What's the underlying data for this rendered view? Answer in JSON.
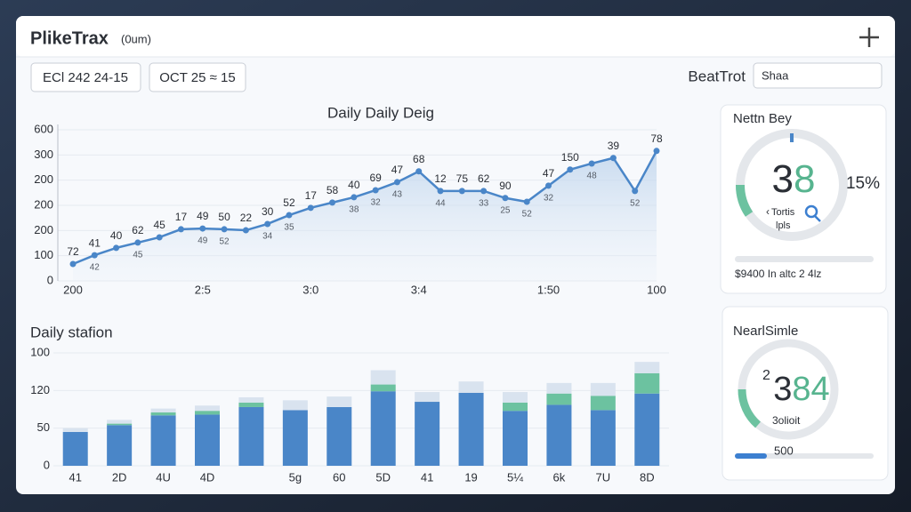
{
  "header": {
    "title": "PlikeTrax",
    "subtitle": "(0um)"
  },
  "toolbar": {
    "date_from": "ECl 242 24-15",
    "date_to": "OCT 25 ≈ 15",
    "label": "BeatTrot",
    "search": "Shaa"
  },
  "line_chart": {
    "type": "line",
    "title": "Daily Daily Deig",
    "color": "#4a86c8",
    "ylim": [
      0,
      600
    ],
    "yticks": [
      0,
      100,
      200,
      {
        "value": 300,
        "label": "200"
      },
      {
        "value": 400,
        "label": "200"
      },
      {
        "value": 500,
        "label": "300"
      },
      600
    ],
    "categories": [
      "200",
      null,
      null,
      null,
      null,
      null,
      "2:5",
      null,
      null,
      null,
      null,
      "3:0",
      null,
      null,
      null,
      null,
      "3:4",
      null,
      null,
      null,
      null,
      null,
      "1:50",
      null,
      null,
      null,
      null,
      "100"
    ],
    "values": [
      67,
      102,
      131,
      152,
      173,
      205,
      208,
      205,
      201,
      226,
      261,
      290,
      311,
      332,
      360,
      392,
      435,
      357,
      357,
      357,
      329,
      314,
      378,
      442,
      466,
      488,
      357,
      516
    ],
    "point_labels": [
      "72",
      "41",
      "40",
      "62",
      "45",
      "17",
      "49",
      "50",
      "22",
      "30",
      "52",
      "17",
      "58",
      "40",
      "69",
      "47",
      "68",
      "12",
      "75",
      "62",
      "90",
      null,
      "47",
      "150",
      null,
      "39",
      null,
      "78"
    ],
    "point_sublabels": [
      null,
      "42",
      null,
      "45",
      null,
      null,
      "49",
      "52",
      null,
      "34",
      "35",
      null,
      null,
      "38",
      "32",
      "43",
      null,
      "44",
      null,
      "33",
      "25",
      "52",
      "32",
      null,
      "48",
      null,
      "52",
      null
    ]
  },
  "bar_chart": {
    "type": "bar",
    "title": "Daily stafion",
    "ylim": [
      0,
      150
    ],
    "yticks": [
      0,
      50,
      {
        "value": 100,
        "label": "120"
      },
      {
        "value": 150,
        "label": "100"
      }
    ],
    "categories": [
      "41",
      "2D",
      "4U",
      "4D",
      null,
      "5g",
      "60",
      "5D",
      "41",
      "19",
      "5¼",
      "6k",
      "7U",
      "8D"
    ],
    "series": [
      {
        "color": "#4a86c8",
        "values": [
          45,
          54,
          67,
          68,
          78,
          74,
          78,
          99,
          85,
          97,
          73,
          81,
          74,
          96
        ]
      },
      {
        "color": "#6cc2a0",
        "values": [
          0,
          2,
          4,
          5,
          6,
          0,
          0,
          9,
          0,
          0,
          11,
          15,
          19,
          27
        ]
      },
      {
        "color": "#d9e3ef",
        "values": [
          5,
          5,
          5,
          7,
          7,
          13,
          14,
          19,
          13,
          15,
          14,
          14,
          17,
          15
        ]
      }
    ]
  },
  "cards": [
    {
      "title": "Nettn Bey",
      "value_main": "3",
      "value_accent": "8",
      "side": "15%",
      "line1": "Tortis",
      "line2": "lpls",
      "footer": "$9400 In altc 2 4lz"
    },
    {
      "title": "NearlSimle",
      "prefix": "2",
      "value_main": "3",
      "value_accent": "84",
      "line1": "3olioit",
      "footer": "500"
    }
  ]
}
